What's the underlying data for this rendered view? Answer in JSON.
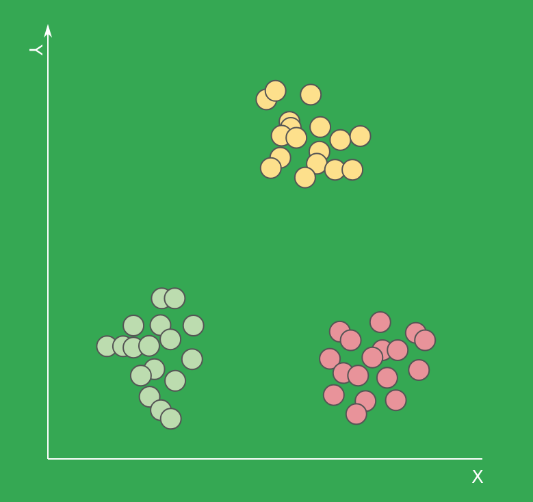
{
  "chart_data": {
    "type": "scatter",
    "xlabel": "X",
    "ylabel": "Y",
    "grid": false,
    "legend": "none",
    "xlim": [
      0,
      100
    ],
    "ylim": [
      0,
      100
    ],
    "background_color": "#35a853",
    "axis_color": "#ffffff",
    "series": [
      {
        "color": "#fde08c",
        "points": [
          {
            "x": 50.3,
            "y": 83.3
          },
          {
            "x": 52.4,
            "y": 85.3
          },
          {
            "x": 60.5,
            "y": 84.4
          },
          {
            "x": 55.6,
            "y": 78.1
          },
          {
            "x": 55.9,
            "y": 76.7
          },
          {
            "x": 62.7,
            "y": 76.9
          },
          {
            "x": 53.8,
            "y": 74.9
          },
          {
            "x": 57.2,
            "y": 74.4
          },
          {
            "x": 67.3,
            "y": 73.9
          },
          {
            "x": 71.9,
            "y": 74.8
          },
          {
            "x": 62.5,
            "y": 71.2
          },
          {
            "x": 53.5,
            "y": 69.8
          },
          {
            "x": 61.9,
            "y": 68.4
          },
          {
            "x": 51.3,
            "y": 67.4
          },
          {
            "x": 66.1,
            "y": 67.0
          },
          {
            "x": 70.1,
            "y": 67.0
          },
          {
            "x": 59.2,
            "y": 65.2
          }
        ]
      },
      {
        "color": "#bcdcaf",
        "points": [
          {
            "x": 26.2,
            "y": 37.2
          },
          {
            "x": 29.2,
            "y": 37.2
          },
          {
            "x": 19.7,
            "y": 30.9
          },
          {
            "x": 25.9,
            "y": 31.0
          },
          {
            "x": 33.5,
            "y": 30.9
          },
          {
            "x": 28.2,
            "y": 27.7
          },
          {
            "x": 13.6,
            "y": 26.1
          },
          {
            "x": 17.3,
            "y": 26.1
          },
          {
            "x": 19.7,
            "y": 25.8
          },
          {
            "x": 23.3,
            "y": 26.2
          },
          {
            "x": 33.2,
            "y": 23.1
          },
          {
            "x": 24.5,
            "y": 20.8
          },
          {
            "x": 21.4,
            "y": 19.3
          },
          {
            "x": 29.3,
            "y": 18.1
          },
          {
            "x": 23.4,
            "y": 14.4
          },
          {
            "x": 26.0,
            "y": 11.3
          },
          {
            "x": 28.3,
            "y": 9.3
          }
        ]
      },
      {
        "color": "#e8939a",
        "points": [
          {
            "x": 76.5,
            "y": 31.7
          },
          {
            "x": 67.2,
            "y": 29.5
          },
          {
            "x": 84.7,
            "y": 29.2
          },
          {
            "x": 69.7,
            "y": 27.5
          },
          {
            "x": 86.8,
            "y": 27.5
          },
          {
            "x": 77.0,
            "y": 25.2
          },
          {
            "x": 74.7,
            "y": 23.5
          },
          {
            "x": 80.5,
            "y": 25.2
          },
          {
            "x": 64.9,
            "y": 23.2
          },
          {
            "x": 68.0,
            "y": 19.9
          },
          {
            "x": 71.4,
            "y": 19.3
          },
          {
            "x": 78.1,
            "y": 18.8
          },
          {
            "x": 85.4,
            "y": 20.6
          },
          {
            "x": 65.8,
            "y": 14.8
          },
          {
            "x": 73.1,
            "y": 13.4
          },
          {
            "x": 80.1,
            "y": 13.6
          },
          {
            "x": 71.0,
            "y": 10.4
          }
        ]
      }
    ]
  }
}
